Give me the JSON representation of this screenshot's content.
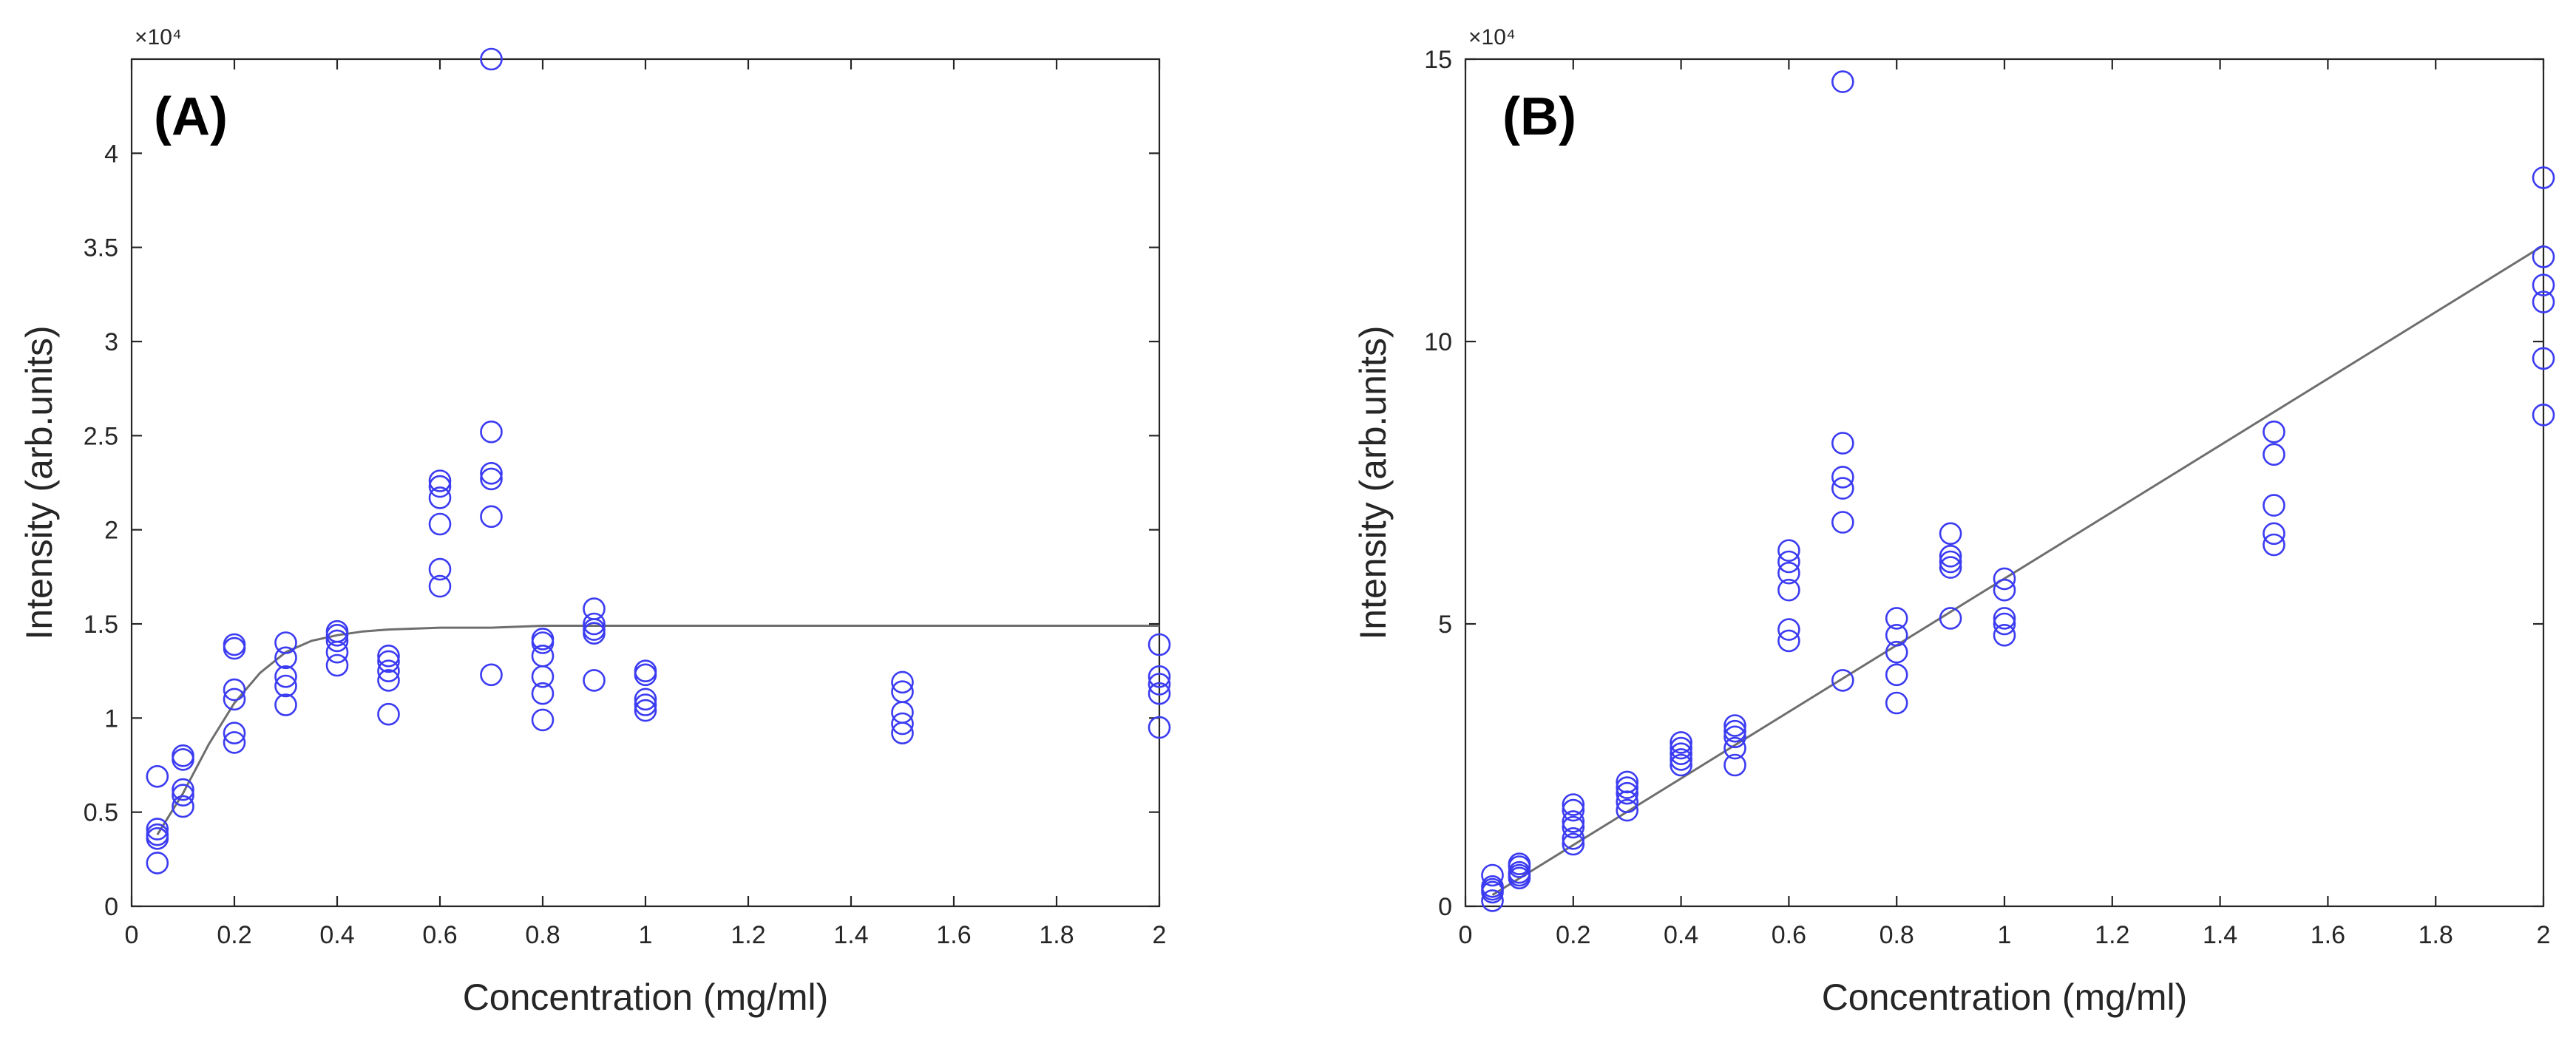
{
  "colors": {
    "marker": "#3b3bf2",
    "fit": "#6e6e6e",
    "axis": "#262626"
  },
  "chart_data": [
    {
      "type": "scatter",
      "panel_label": "(A)",
      "xlabel": "Concentration (mg/ml)",
      "ylabel": "Intensity (arb.units)",
      "y_exponent_label": "×10⁴",
      "xlim": [
        0,
        2
      ],
      "ylim": [
        0,
        4.5
      ],
      "xticks": [
        0,
        0.2,
        0.4,
        0.6,
        0.8,
        1,
        1.2,
        1.4,
        1.6,
        1.8,
        2
      ],
      "xtick_labels": [
        "0",
        "0.2",
        "0.4",
        "0.6",
        "0.8",
        "1",
        "1.2",
        "1.4",
        "1.6",
        "1.8",
        "2"
      ],
      "yticks": [
        0,
        0.5,
        1,
        1.5,
        2,
        2.5,
        3,
        3.5,
        4
      ],
      "ytick_labels": [
        "0",
        "0.5",
        "1",
        "1.5",
        "2",
        "2.5",
        "3",
        "3.5",
        "4"
      ],
      "points": [
        [
          0.05,
          0.23
        ],
        [
          0.05,
          0.36
        ],
        [
          0.05,
          0.38
        ],
        [
          0.05,
          0.41
        ],
        [
          0.05,
          0.69
        ],
        [
          0.1,
          0.53
        ],
        [
          0.1,
          0.59
        ],
        [
          0.1,
          0.62
        ],
        [
          0.1,
          0.78
        ],
        [
          0.1,
          0.8
        ],
        [
          0.2,
          0.87
        ],
        [
          0.2,
          0.92
        ],
        [
          0.2,
          1.1
        ],
        [
          0.2,
          1.15
        ],
        [
          0.2,
          1.37
        ],
        [
          0.2,
          1.39
        ],
        [
          0.3,
          1.07
        ],
        [
          0.3,
          1.17
        ],
        [
          0.3,
          1.22
        ],
        [
          0.3,
          1.32
        ],
        [
          0.3,
          1.4
        ],
        [
          0.4,
          1.28
        ],
        [
          0.4,
          1.35
        ],
        [
          0.4,
          1.41
        ],
        [
          0.4,
          1.44
        ],
        [
          0.4,
          1.46
        ],
        [
          0.5,
          1.02
        ],
        [
          0.5,
          1.2
        ],
        [
          0.5,
          1.25
        ],
        [
          0.5,
          1.3
        ],
        [
          0.5,
          1.33
        ],
        [
          0.6,
          1.7
        ],
        [
          0.6,
          1.79
        ],
        [
          0.6,
          2.03
        ],
        [
          0.6,
          2.17
        ],
        [
          0.6,
          2.23
        ],
        [
          0.6,
          2.26
        ],
        [
          0.7,
          1.23
        ],
        [
          0.7,
          2.07
        ],
        [
          0.7,
          2.27
        ],
        [
          0.7,
          2.3
        ],
        [
          0.7,
          2.52
        ],
        [
          0.7,
          4.5
        ],
        [
          0.8,
          0.99
        ],
        [
          0.8,
          1.13
        ],
        [
          0.8,
          1.22
        ],
        [
          0.8,
          1.33
        ],
        [
          0.8,
          1.4
        ],
        [
          0.8,
          1.42
        ],
        [
          0.9,
          1.2
        ],
        [
          0.9,
          1.45
        ],
        [
          0.9,
          1.47
        ],
        [
          0.9,
          1.5
        ],
        [
          0.9,
          1.58
        ],
        [
          1.0,
          1.04
        ],
        [
          1.0,
          1.07
        ],
        [
          1.0,
          1.1
        ],
        [
          1.0,
          1.23
        ],
        [
          1.0,
          1.25
        ],
        [
          1.5,
          0.92
        ],
        [
          1.5,
          0.97
        ],
        [
          1.5,
          1.03
        ],
        [
          1.5,
          1.14
        ],
        [
          1.5,
          1.19
        ],
        [
          2.0,
          0.95
        ],
        [
          2.0,
          1.13
        ],
        [
          2.0,
          1.18
        ],
        [
          2.0,
          1.22
        ],
        [
          2.0,
          1.39
        ]
      ],
      "fit_line": {
        "x": [
          0.05,
          0.1,
          0.15,
          0.2,
          0.25,
          0.3,
          0.35,
          0.4,
          0.45,
          0.5,
          0.6,
          0.7,
          0.8,
          0.9,
          1.0,
          1.2,
          1.5,
          2.0
        ],
        "y": [
          0.38,
          0.6,
          0.86,
          1.08,
          1.24,
          1.35,
          1.41,
          1.44,
          1.46,
          1.47,
          1.48,
          1.48,
          1.49,
          1.49,
          1.49,
          1.49,
          1.49,
          1.49
        ]
      }
    },
    {
      "type": "scatter",
      "panel_label": "(B)",
      "xlabel": "Concentration (mg/ml)",
      "ylabel": "Intensity (arb.units)",
      "y_exponent_label": "×10⁴",
      "xlim": [
        0,
        2
      ],
      "ylim": [
        0,
        15
      ],
      "xticks": [
        0,
        0.2,
        0.4,
        0.6,
        0.8,
        1,
        1.2,
        1.4,
        1.6,
        1.8,
        2
      ],
      "xtick_labels": [
        "0",
        "0.2",
        "0.4",
        "0.6",
        "0.8",
        "1",
        "1.2",
        "1.4",
        "1.6",
        "1.8",
        "2"
      ],
      "yticks": [
        0,
        5,
        10,
        15
      ],
      "ytick_labels": [
        "0",
        "5",
        "10",
        "15"
      ],
      "points": [
        [
          0.05,
          0.1
        ],
        [
          0.05,
          0.25
        ],
        [
          0.05,
          0.3
        ],
        [
          0.05,
          0.35
        ],
        [
          0.05,
          0.55
        ],
        [
          0.1,
          0.5
        ],
        [
          0.1,
          0.55
        ],
        [
          0.1,
          0.6
        ],
        [
          0.1,
          0.7
        ],
        [
          0.1,
          0.75
        ],
        [
          0.2,
          1.1
        ],
        [
          0.2,
          1.2
        ],
        [
          0.2,
          1.4
        ],
        [
          0.2,
          1.5
        ],
        [
          0.2,
          1.7
        ],
        [
          0.2,
          1.8
        ],
        [
          0.3,
          1.7
        ],
        [
          0.3,
          1.85
        ],
        [
          0.3,
          2.0
        ],
        [
          0.3,
          2.1
        ],
        [
          0.3,
          2.2
        ],
        [
          0.4,
          2.5
        ],
        [
          0.4,
          2.6
        ],
        [
          0.4,
          2.7
        ],
        [
          0.4,
          2.8
        ],
        [
          0.4,
          2.9
        ],
        [
          0.5,
          2.5
        ],
        [
          0.5,
          2.8
        ],
        [
          0.5,
          3.0
        ],
        [
          0.5,
          3.1
        ],
        [
          0.5,
          3.2
        ],
        [
          0.6,
          4.7
        ],
        [
          0.6,
          4.9
        ],
        [
          0.6,
          5.6
        ],
        [
          0.6,
          5.9
        ],
        [
          0.6,
          6.1
        ],
        [
          0.6,
          6.3
        ],
        [
          0.7,
          4.0
        ],
        [
          0.7,
          6.8
        ],
        [
          0.7,
          7.4
        ],
        [
          0.7,
          7.6
        ],
        [
          0.7,
          8.2
        ],
        [
          0.7,
          14.6
        ],
        [
          0.8,
          3.6
        ],
        [
          0.8,
          4.1
        ],
        [
          0.8,
          4.5
        ],
        [
          0.8,
          4.8
        ],
        [
          0.8,
          5.1
        ],
        [
          0.9,
          5.1
        ],
        [
          0.9,
          6.0
        ],
        [
          0.9,
          6.1
        ],
        [
          0.9,
          6.2
        ],
        [
          0.9,
          6.6
        ],
        [
          1.0,
          4.8
        ],
        [
          1.0,
          5.0
        ],
        [
          1.0,
          5.1
        ],
        [
          1.0,
          5.6
        ],
        [
          1.0,
          5.8
        ],
        [
          1.5,
          6.4
        ],
        [
          1.5,
          6.6
        ],
        [
          1.5,
          7.1
        ],
        [
          1.5,
          8.0
        ],
        [
          1.5,
          8.4
        ],
        [
          2.0,
          8.7
        ],
        [
          2.0,
          9.7
        ],
        [
          2.0,
          10.7
        ],
        [
          2.0,
          11.0
        ],
        [
          2.0,
          11.5
        ],
        [
          2.0,
          12.9
        ]
      ],
      "fit_line": {
        "x": [
          0.05,
          2.0
        ],
        "y": [
          0.2,
          11.7
        ]
      }
    }
  ]
}
